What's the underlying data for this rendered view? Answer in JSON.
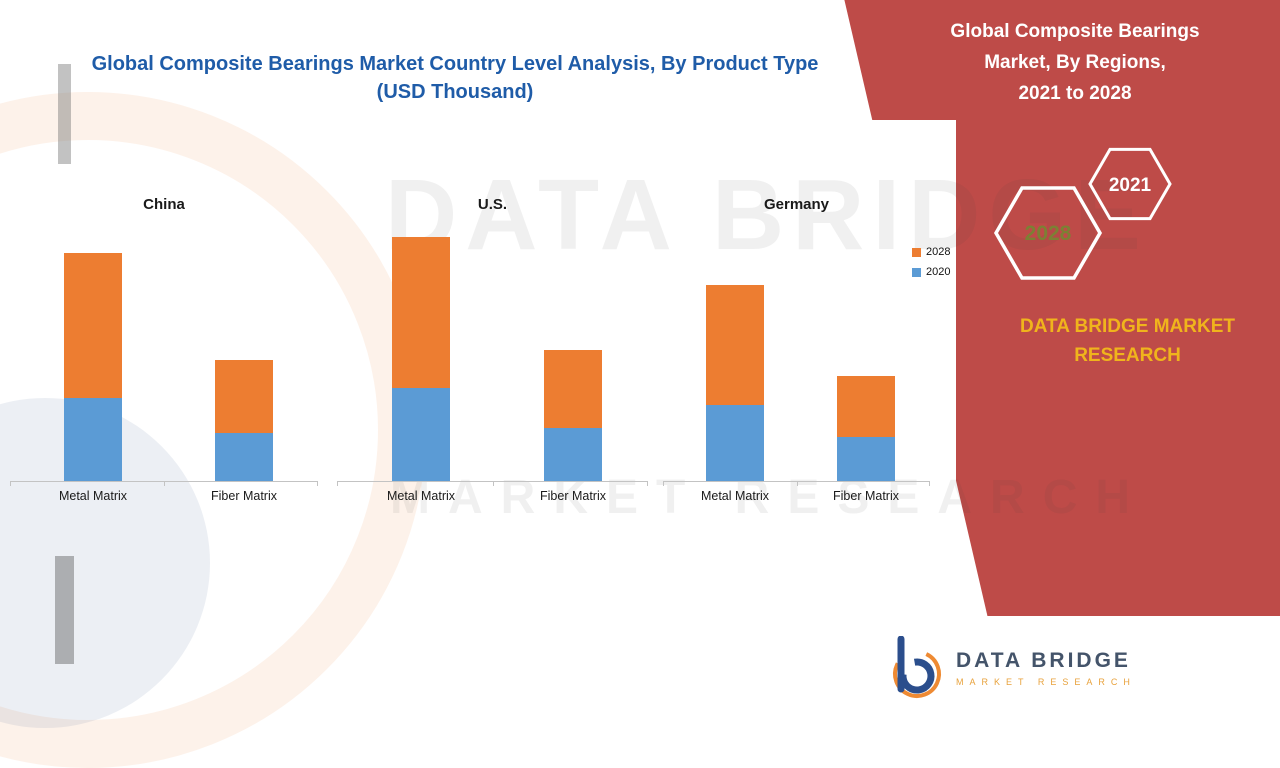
{
  "page": {
    "chart_title": "Global Composite Bearings Market Country Level Analysis, By Product Type (USD Thousand)",
    "side_panel": {
      "title_lines": [
        "Global Composite Bearings",
        "Market, By Regions,",
        "2021 to 2028"
      ],
      "hex_2028": "2028",
      "hex_2021": "2021",
      "brand_lines": [
        "DATA BRIDGE MARKET",
        "RESEARCH"
      ]
    },
    "legend": [
      {
        "label": "2028",
        "color": "#ED7D31"
      },
      {
        "label": "2020",
        "color": "#5B9BD5"
      }
    ],
    "footer": {
      "name": "DATA BRIDGE",
      "sub": "MARKET RESEARCH"
    },
    "watermark": {
      "line1": "DATA BRIDGE",
      "line2": "MARKET RESEARCH"
    },
    "colors": {
      "red_panel": "#BE4B48",
      "title_blue": "#1F5CA8",
      "brand_yellow": "#F0B41C",
      "hex_2028_text": "#7C8034",
      "bar_2020": "#5B9BD5",
      "bar_2028": "#ED7D31"
    }
  },
  "chart_data": {
    "type": "bar",
    "stacked": true,
    "title": "Global Composite Bearings Market Country Level Analysis, By Product Type (USD Thousand)",
    "xlabel": "",
    "ylabel": "USD Thousand",
    "grid": false,
    "legend_position": "middle-right",
    "note": "No numeric axis labels shown; values are estimated relative units read from bar pixel heights.",
    "colors": {
      "2020": "#5B9BD5",
      "2028": "#ED7D31"
    },
    "groups": [
      {
        "name": "China",
        "categories": [
          "Metal Matrix",
          "Fiber Matrix"
        ],
        "series": [
          {
            "name": "2020",
            "values": [
              83,
              48
            ]
          },
          {
            "name": "2028",
            "values": [
              145,
              73
            ]
          }
        ]
      },
      {
        "name": "U.S.",
        "categories": [
          "Metal Matrix",
          "Fiber Matrix"
        ],
        "series": [
          {
            "name": "2020",
            "values": [
              93,
              53
            ]
          },
          {
            "name": "2028",
            "values": [
              151,
              78
            ]
          }
        ]
      },
      {
        "name": "Germany",
        "categories": [
          "Metal Matrix",
          "Fiber Matrix"
        ],
        "series": [
          {
            "name": "2020",
            "values": [
              76,
              44
            ]
          },
          {
            "name": "2028",
            "values": [
              120,
              61
            ]
          }
        ]
      }
    ]
  }
}
